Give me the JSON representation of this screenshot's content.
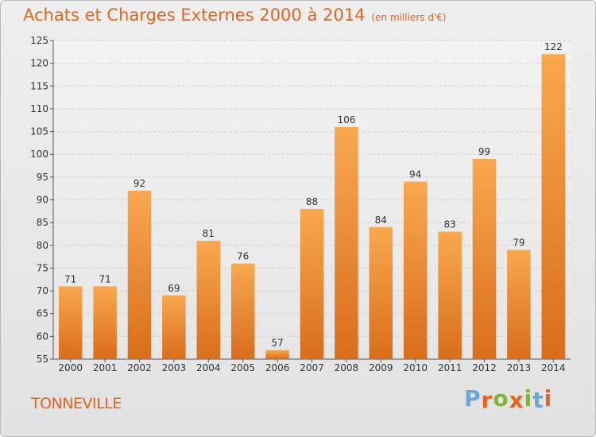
{
  "header": {
    "title": "Achats et Charges Externes 2000 à 2014",
    "subtitle": "(en milliers d'€)"
  },
  "footer": {
    "commune": "TONNEVILLE",
    "logo_text": "Proxiti"
  },
  "colors": {
    "accent": "#e5651f",
    "bar_light": "#f9a850",
    "bar_dark": "#d96d1c",
    "logo_letters": [
      "#6aa8d8",
      "#e5651f",
      "#7fb539",
      "#e5651f",
      "#7fb539",
      "#6aa8d8",
      "#e5651f"
    ]
  },
  "chart_data": {
    "type": "bar",
    "categories": [
      "2000",
      "2001",
      "2002",
      "2003",
      "2004",
      "2005",
      "2006",
      "2007",
      "2008",
      "2009",
      "2010",
      "2011",
      "2012",
      "2013",
      "2014"
    ],
    "values": [
      71,
      71,
      92,
      69,
      81,
      76,
      57,
      88,
      106,
      84,
      94,
      83,
      99,
      79,
      122
    ],
    "data_labels": [
      "71",
      "71",
      "92",
      "69",
      "81",
      "76",
      "57",
      "88",
      "106",
      "84",
      "94",
      "83",
      "99",
      "79",
      "122"
    ],
    "ylim": [
      55,
      125
    ],
    "yticks": [
      55,
      60,
      65,
      70,
      75,
      80,
      85,
      90,
      95,
      100,
      105,
      110,
      115,
      120,
      125
    ],
    "grid": true,
    "title": "Achats et Charges Externes 2000 à 2014",
    "xlabel": "",
    "ylabel": ""
  }
}
